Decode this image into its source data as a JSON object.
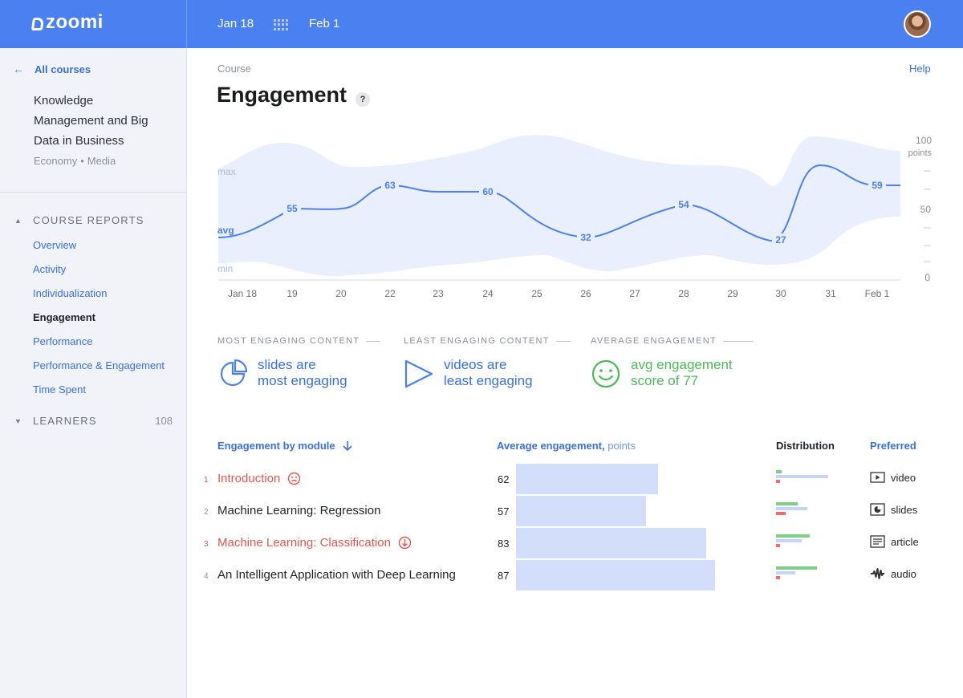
{
  "topbar": {
    "logo": "zoomi",
    "date_start": "Jan 18",
    "date_end": "Feb 1"
  },
  "sidebar": {
    "back_label": "All courses",
    "course_title": "Knowledge Management and Big Data in Business",
    "tags": [
      "Economy",
      "Media"
    ],
    "reports_label": "COURSE REPORTS",
    "nav": [
      "Overview",
      "Activity",
      "Individualization",
      "Engagement",
      "Performance",
      "Performance & Engagement",
      "Time Spent"
    ],
    "active_nav": "Engagement",
    "learners_label": "LEARNERS",
    "learners_count": "108"
  },
  "main": {
    "breadcrumb": "Course",
    "help": "Help",
    "title": "Engagement",
    "title_badge": "?"
  },
  "chart_data": {
    "type": "area",
    "categories": [
      "Jan 18",
      "19",
      "20",
      "22",
      "23",
      "24",
      "25",
      "26",
      "27",
      "28",
      "29",
      "30",
      "31",
      "Feb 1"
    ],
    "series": [
      {
        "values": [
          null,
          55,
          null,
          63,
          null,
          60,
          null,
          32,
          null,
          54,
          null,
          27,
          null,
          59
        ]
      }
    ],
    "band_labels": {
      "max": "max",
      "avg": "avg",
      "min": "min"
    },
    "y_ticks": [
      "100",
      "50",
      "0"
    ],
    "y_unit": "points",
    "ylim": [
      0,
      100
    ],
    "colors": {
      "line": "#4a80f0",
      "band": "#eaeffd"
    }
  },
  "insights": [
    {
      "heading": "MOST ENGAGING CONTENT",
      "line1": "slides are",
      "line2": "most engaging",
      "icon": "pie-chart-icon"
    },
    {
      "heading": "LEAST ENGAGING CONTENT",
      "line1": "videos are",
      "line2": "least engaging",
      "icon": "play-icon"
    },
    {
      "heading": "AVERAGE ENGAGEMENT",
      "line1": "avg engagement",
      "line2": "score of 77",
      "icon": "smile-icon"
    }
  ],
  "table": {
    "col_module": "Engagement by module",
    "col_avg": "Average engagement,",
    "col_avg_unit": "points",
    "col_dist": "Distribution",
    "col_pref": "Preferred",
    "rows": [
      {
        "num": "1",
        "name": "Introduction",
        "flag": "frown-icon",
        "value": 62,
        "preferred": "video",
        "dist": [
          0.1,
          0.9,
          0.07
        ]
      },
      {
        "num": "2",
        "name": "Machine Learning: Regression",
        "flag": "",
        "value": 57,
        "preferred": "slides",
        "dist": [
          0.37,
          0.54,
          0.16
        ]
      },
      {
        "num": "3",
        "name": "Machine Learning: Classification",
        "flag": "down-arrow-icon",
        "value": 83,
        "preferred": "article",
        "dist": [
          0.59,
          0.44,
          0.07
        ]
      },
      {
        "num": "4",
        "name": "An Intelligent Application with Deep Learning",
        "flag": "",
        "value": 87,
        "preferred": "audio",
        "dist": [
          0.71,
          0.33,
          0.07
        ]
      }
    ]
  },
  "colors": {
    "accent": "#4a80f0",
    "danger": "#e0554e",
    "success": "#4cb85a",
    "bar": "#d3dffa"
  }
}
